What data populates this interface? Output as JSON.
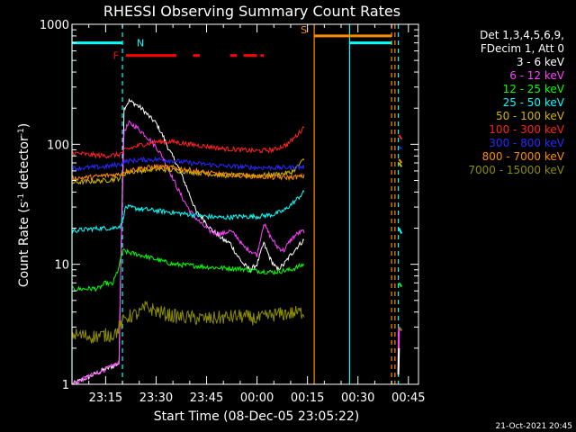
{
  "chart_data": {
    "type": "line",
    "title": "RHESSI Observing Summary Count Rates",
    "xlabel": "Start Time (08-Dec-05 23:05:22)",
    "ylabel_main": "Count Rate (s",
    "ylabel_sup1": "-1",
    "ylabel_mid": " detector",
    "ylabel_sup2": "-1",
    "ylabel_end": ")",
    "y_scale": "log",
    "ylim": [
      1,
      1000
    ],
    "xlim_minutes_after_23_05": [
      0,
      103
    ],
    "x_ticks": [
      {
        "label": "23:15",
        "min": 10
      },
      {
        "label": "23:30",
        "min": 25
      },
      {
        "label": "23:45",
        "min": 40
      },
      {
        "label": "00:00",
        "min": 55
      },
      {
        "label": "00:15",
        "min": 70
      },
      {
        "label": "00:30",
        "min": 85
      },
      {
        "label": "00:45",
        "min": 100
      }
    ],
    "y_ticks": [
      {
        "label": "1",
        "value": 1
      },
      {
        "label": "10",
        "value": 10
      },
      {
        "label": "100",
        "value": 100
      },
      {
        "label": "1000",
        "value": 1000
      }
    ],
    "legend": {
      "placement": "right",
      "header": [
        "Det 1,3,4,5,6,9,",
        "FDecim 1, Att 0"
      ],
      "entries": [
        {
          "label": "3 - 6 keV",
          "color": "#ffffff"
        },
        {
          "label": "6 - 12 keV",
          "color": "#ff40ff"
        },
        {
          "label": "12 - 25 keV",
          "color": "#00ff00"
        },
        {
          "label": "25 - 50 keV",
          "color": "#00ffff"
        },
        {
          "label": "50 - 100 keV",
          "color": "#d2b400"
        },
        {
          "label": "100 - 300 keV",
          "color": "#ff2020"
        },
        {
          "label": "300 - 800 keV",
          "color": "#2828ff"
        },
        {
          "label": "800 - 7000 keV",
          "color": "#ff8c00"
        },
        {
          "label": "7000 - 15000 keV",
          "color": "#8c8c00"
        }
      ]
    },
    "flags": [
      {
        "label": "N",
        "color": "#00ffff",
        "value": 700,
        "segments": [
          [
            0,
            15
          ],
          [
            82.5,
            95
          ]
        ]
      },
      {
        "label": "F",
        "color": "#ff0000",
        "value": 550,
        "segments": [
          [
            16,
            31
          ],
          [
            36,
            38
          ],
          [
            47,
            49
          ],
          [
            51,
            55
          ],
          [
            56,
            57
          ]
        ]
      },
      {
        "label": "S",
        "color": "#ff8c00",
        "value": 800,
        "segments": [
          [
            72,
            95
          ]
        ]
      }
    ],
    "boundaries": [
      {
        "x": 0,
        "color": "#00ffff",
        "style": "solid"
      },
      {
        "x": 15,
        "color": "#00ffff",
        "style": "dashed"
      },
      {
        "x": 72,
        "color": "#ff8c00",
        "style": "solid"
      },
      {
        "x": 82.5,
        "color": "#00ffff",
        "style": "solid"
      },
      {
        "x": 95,
        "color": "#ff8c00",
        "style": "dashed"
      },
      {
        "x": 96,
        "color": "#ff8c00",
        "style": "dashed"
      },
      {
        "x": 97,
        "color": "#00ffff",
        "style": "dashed"
      }
    ],
    "series": [
      {
        "color": "#ffffff",
        "x": [
          0,
          14,
          14.5,
          15.5,
          17,
          19,
          21,
          23,
          25,
          27,
          29,
          31,
          33,
          35,
          37,
          39,
          41,
          43,
          45,
          47,
          49,
          51,
          53,
          55,
          57,
          59,
          61,
          63,
          65,
          67,
          69
        ],
        "y": [
          1,
          1.5,
          10,
          200,
          230,
          215,
          195,
          170,
          150,
          118,
          88,
          70,
          52,
          38,
          27,
          24,
          20,
          18,
          16,
          15,
          12,
          10,
          9,
          10,
          15,
          11,
          9,
          10,
          12,
          14,
          16
        ]
      },
      {
        "color": "#ff40ff",
        "x": [
          0,
          14,
          14.5,
          15.5,
          17,
          19,
          21,
          23,
          25,
          27,
          29,
          31,
          33,
          35,
          37,
          39,
          41,
          43,
          45,
          47,
          49,
          51,
          53,
          55,
          57,
          59,
          61,
          63,
          65,
          67,
          69
        ],
        "y": [
          1,
          1.5,
          10,
          130,
          150,
          140,
          125,
          110,
          95,
          78,
          60,
          45,
          35,
          28,
          24,
          21,
          19,
          18,
          18,
          19,
          17,
          14,
          13,
          12,
          22,
          17,
          14,
          13,
          16,
          18,
          19
        ]
      },
      {
        "color": "#00ff00",
        "x": [
          0,
          8,
          10,
          12,
          14,
          15,
          17,
          20,
          25,
          30,
          35,
          40,
          45,
          50,
          55,
          60,
          65,
          69
        ],
        "y": [
          6.2,
          6.3,
          7,
          6.8,
          9.5,
          13,
          12.5,
          12,
          11,
          10,
          9.8,
          9.5,
          9.3,
          9.2,
          8.8,
          8.6,
          9,
          10
        ]
      },
      {
        "color": "#00ffff",
        "x": [
          0,
          4,
          8,
          12,
          14.5,
          16,
          20,
          25,
          30,
          35,
          40,
          45,
          50,
          55,
          60,
          63,
          66,
          69
        ],
        "y": [
          19,
          19.5,
          20,
          20,
          21,
          30,
          29,
          28,
          27,
          26,
          25,
          24.5,
          25,
          25,
          26,
          28,
          33,
          40
        ]
      },
      {
        "color": "#d2b400",
        "x": [
          0,
          5,
          10,
          14,
          16,
          20,
          25,
          30,
          35,
          40,
          45,
          50,
          55,
          60,
          65,
          67,
          69
        ],
        "y": [
          48,
          49,
          50,
          52,
          58,
          60,
          62,
          61,
          59,
          57,
          55,
          55,
          55,
          56,
          58,
          65,
          75
        ]
      },
      {
        "color": "#ff2020",
        "x": [
          0,
          5,
          10,
          14,
          16,
          20,
          25,
          30,
          35,
          40,
          45,
          50,
          55,
          60,
          64,
          67,
          69
        ],
        "y": [
          85,
          82,
          80,
          82,
          90,
          98,
          105,
          105,
          100,
          96,
          92,
          90,
          88,
          90,
          100,
          120,
          140
        ]
      },
      {
        "color": "#2828ff",
        "x": [
          0,
          5,
          10,
          14,
          16,
          20,
          25,
          30,
          35,
          40,
          45,
          50,
          55,
          60,
          65,
          69
        ],
        "y": [
          63,
          64,
          65,
          68,
          72,
          74,
          75,
          73,
          70,
          68,
          66,
          65,
          64,
          64,
          64,
          65
        ]
      },
      {
        "color": "#ff8c00",
        "x": [
          0,
          5,
          10,
          14,
          16,
          20,
          25,
          30,
          35,
          40,
          45,
          50,
          55,
          60,
          65,
          69
        ],
        "y": [
          52,
          53,
          55,
          56,
          60,
          63,
          65,
          64,
          61,
          58,
          56,
          55,
          54,
          53,
          53,
          54
        ]
      },
      {
        "color": "#8c8c00",
        "x": [
          0,
          6,
          12,
          13,
          16,
          20,
          22,
          26,
          30,
          35,
          40,
          45,
          50,
          55,
          60,
          65,
          69
        ],
        "y": [
          2.6,
          2.5,
          2.6,
          2.7,
          3.6,
          3.9,
          4.4,
          4.0,
          3.7,
          3.6,
          3.5,
          3.6,
          3.7,
          3.5,
          3.8,
          3.9,
          4.0
        ]
      }
    ],
    "post_gap_segments": [
      {
        "color": "#ff2020",
        "x": [
          97.2,
          98.0
        ],
        "y": [
          120,
          110
        ]
      },
      {
        "color": "#2828ff",
        "x": [
          97.2,
          98.0
        ],
        "y": [
          95,
          92
        ]
      },
      {
        "color": "#ff8c00",
        "x": [
          97.2,
          98.0
        ],
        "y": [
          75,
          70
        ]
      },
      {
        "color": "#d2b400",
        "x": [
          97.2,
          98.0
        ],
        "y": [
          70,
          65
        ]
      },
      {
        "color": "#ff40ff",
        "x": [
          97.0,
          97.2
        ],
        "y": [
          1.3,
          3
        ]
      },
      {
        "color": "#ffffff",
        "x": [
          97.0,
          97.2
        ],
        "y": [
          1.2,
          2
        ]
      },
      {
        "color": "#00ff00",
        "x": [
          97.2,
          98.0
        ],
        "y": [
          7,
          6.5
        ]
      },
      {
        "color": "#00ffff",
        "x": [
          97.2,
          98.0
        ],
        "y": [
          20,
          18
        ]
      },
      {
        "color": "#8c8c00",
        "x": [
          97.2,
          98.0
        ],
        "y": [
          3,
          2.8
        ]
      }
    ]
  },
  "footer": {
    "timestamp": "21-Oct-2021 20:45"
  }
}
